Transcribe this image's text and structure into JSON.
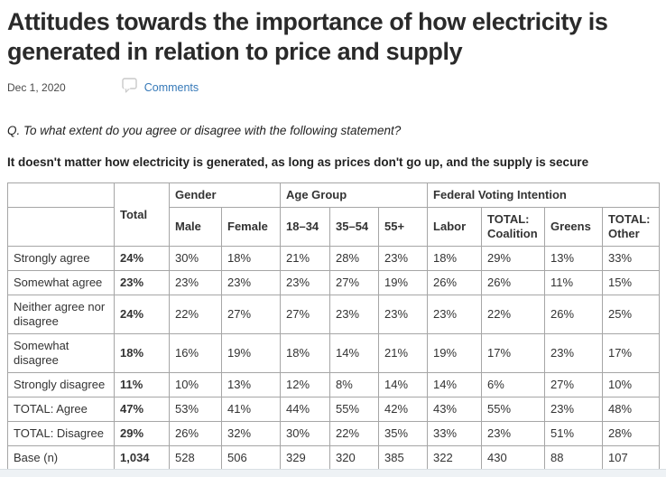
{
  "page": {
    "title": "Attitudes towards the importance of how electricity is generated in relation to price and supply",
    "date": "Dec 1, 2020",
    "comments_label": "Comments",
    "question": "Q. To what extent do you agree or disagree with the following statement?",
    "statement": "It doesn't matter how electricity is generated, as long as prices don't go up, and the supply is secure"
  },
  "colors": {
    "title_text": "#2a2a2a",
    "body_text": "#333333",
    "link_blue": "#3679b8",
    "table_border": "#a6a6a6",
    "footer_strip": "#eef2f5"
  },
  "icons": {
    "comments": "speech-bubble-icon"
  },
  "table": {
    "corner_label": "",
    "total_label": "Total",
    "groups": [
      {
        "label": "Gender",
        "cols": [
          "Male",
          "Female"
        ]
      },
      {
        "label": "Age Group",
        "cols": [
          "18–34",
          "35–54",
          "55+"
        ]
      },
      {
        "label": "Federal Voting Intention",
        "cols": [
          "Labor",
          "TOTAL: Coalition",
          "Greens",
          "TOTAL: Other"
        ]
      }
    ],
    "rows": [
      {
        "label": "Strongly agree",
        "total": "24%",
        "values": [
          "30%",
          "18%",
          "21%",
          "28%",
          "23%",
          "18%",
          "29%",
          "13%",
          "33%"
        ]
      },
      {
        "label": "Somewhat agree",
        "total": "23%",
        "values": [
          "23%",
          "23%",
          "23%",
          "27%",
          "19%",
          "26%",
          "26%",
          "11%",
          "15%"
        ]
      },
      {
        "label": "Neither agree nor disagree",
        "total": "24%",
        "values": [
          "22%",
          "27%",
          "27%",
          "23%",
          "23%",
          "23%",
          "22%",
          "26%",
          "25%"
        ]
      },
      {
        "label": "Somewhat disagree",
        "total": "18%",
        "values": [
          "16%",
          "19%",
          "18%",
          "14%",
          "21%",
          "19%",
          "17%",
          "23%",
          "17%"
        ]
      },
      {
        "label": "Strongly disagree",
        "total": "11%",
        "values": [
          "10%",
          "13%",
          "12%",
          "8%",
          "14%",
          "14%",
          "6%",
          "27%",
          "10%"
        ]
      },
      {
        "label": "TOTAL: Agree",
        "total": "47%",
        "values": [
          "53%",
          "41%",
          "44%",
          "55%",
          "42%",
          "43%",
          "55%",
          "23%",
          "48%"
        ]
      },
      {
        "label": "TOTAL: Disagree",
        "total": "29%",
        "values": [
          "26%",
          "32%",
          "30%",
          "22%",
          "35%",
          "33%",
          "23%",
          "51%",
          "28%"
        ]
      },
      {
        "label": "Base (n)",
        "total": "1,034",
        "values": [
          "528",
          "506",
          "329",
          "320",
          "385",
          "322",
          "430",
          "88",
          "107"
        ]
      }
    ]
  },
  "chart_data": {
    "type": "table",
    "title": "It doesn't matter how electricity is generated, as long as prices don't go up, and the supply is secure",
    "columns": [
      "",
      "Total",
      "Male",
      "Female",
      "18–34",
      "35–54",
      "55+",
      "Labor",
      "TOTAL: Coalition",
      "Greens",
      "TOTAL: Other"
    ],
    "rows": [
      [
        "Strongly agree",
        "24%",
        "30%",
        "18%",
        "21%",
        "28%",
        "23%",
        "18%",
        "29%",
        "13%",
        "33%"
      ],
      [
        "Somewhat agree",
        "23%",
        "23%",
        "23%",
        "23%",
        "27%",
        "19%",
        "26%",
        "26%",
        "11%",
        "15%"
      ],
      [
        "Neither agree nor disagree",
        "24%",
        "22%",
        "27%",
        "27%",
        "23%",
        "23%",
        "23%",
        "22%",
        "26%",
        "25%"
      ],
      [
        "Somewhat disagree",
        "18%",
        "16%",
        "19%",
        "18%",
        "14%",
        "21%",
        "19%",
        "17%",
        "23%",
        "17%"
      ],
      [
        "Strongly disagree",
        "11%",
        "10%",
        "13%",
        "12%",
        "8%",
        "14%",
        "14%",
        "6%",
        "27%",
        "10%"
      ],
      [
        "TOTAL: Agree",
        "47%",
        "53%",
        "41%",
        "44%",
        "55%",
        "42%",
        "43%",
        "55%",
        "23%",
        "48%"
      ],
      [
        "TOTAL: Disagree",
        "29%",
        "26%",
        "32%",
        "30%",
        "22%",
        "35%",
        "33%",
        "23%",
        "51%",
        "28%"
      ],
      [
        "Base (n)",
        "1,034",
        "528",
        "506",
        "329",
        "320",
        "385",
        "322",
        "430",
        "88",
        "107"
      ]
    ]
  }
}
